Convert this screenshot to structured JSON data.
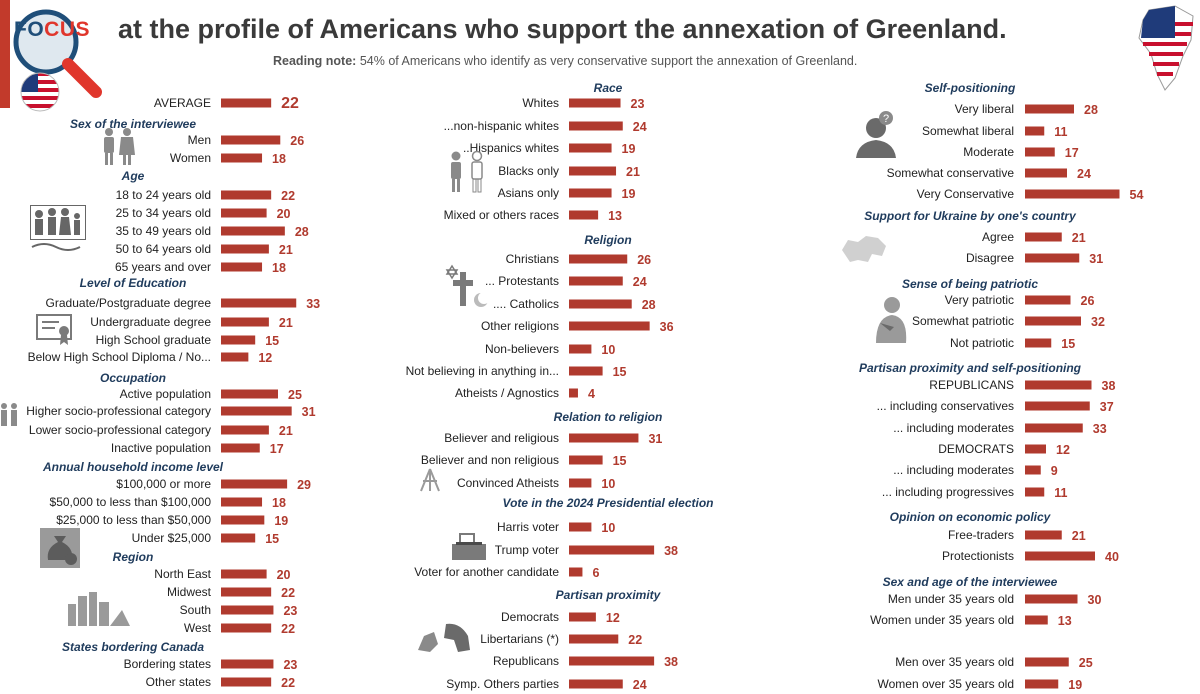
{
  "header": {
    "logo_word_a": "FO",
    "logo_word_b": "CUS",
    "title": "at the profile of Americans who support the annexation of Greenland.",
    "note_label": "Reading note:",
    "note_text": "54% of Americans who identify as very conservative support the annexation of Greenland."
  },
  "colors": {
    "bar": "#b03a2e",
    "value": "#b03a2e",
    "section": "#1f3b5c",
    "accent": "#e0362c"
  },
  "icons": [
    "flag-usa-icon",
    "greenland-flag-map-icon",
    "people-icon",
    "family-icon",
    "diploma-icon",
    "money-bag-icon",
    "city-icon",
    "religion-icon",
    "ballot-box-icon",
    "parties-icon",
    "thinking-person-icon",
    "ukraine-map-icon",
    "patriot-icon"
  ],
  "chart_data": [
    {
      "type": "bar",
      "orientation": "horizontal",
      "unit": "%",
      "groups": [
        {
          "title": "",
          "items": [
            {
              "label": "AVERAGE",
              "value": 22
            }
          ]
        },
        {
          "title": "Sex of the interviewee",
          "items": [
            {
              "label": "Men",
              "value": 26
            },
            {
              "label": "Women",
              "value": 18
            }
          ]
        },
        {
          "title": "Age",
          "items": [
            {
              "label": "18 to 24 years old",
              "value": 22
            },
            {
              "label": "25 to 34 years old",
              "value": 20
            },
            {
              "label": "35 to 49 years old",
              "value": 28
            },
            {
              "label": "50 to 64 years old",
              "value": 21
            },
            {
              "label": "65 years and over",
              "value": 18
            }
          ]
        },
        {
          "title": "Level of Education",
          "items": [
            {
              "label": "Graduate/Postgraduate degree",
              "value": 33
            },
            {
              "label": "Undergraduate degree",
              "value": 21
            },
            {
              "label": "High School graduate",
              "value": 15
            },
            {
              "label": "Below High School Diploma / No...",
              "value": 12
            }
          ]
        },
        {
          "title": "Occupation",
          "items": [
            {
              "label": "Active population",
              "value": 25
            },
            {
              "label": "Higher socio-professional category",
              "value": 31
            },
            {
              "label": "Lower socio-professional category",
              "value": 21
            },
            {
              "label": "Inactive population",
              "value": 17
            }
          ]
        },
        {
          "title": "Annual household income level",
          "items": [
            {
              "label": "$100,000 or more",
              "value": 29
            },
            {
              "label": "$50,000 to less than $100,000",
              "value": 18
            },
            {
              "label": "$25,000 to less than $50,000",
              "value": 19
            },
            {
              "label": "Under $25,000",
              "value": 15
            }
          ]
        },
        {
          "title": "Region",
          "items": [
            {
              "label": "North East",
              "value": 20
            },
            {
              "label": "Midwest",
              "value": 22
            },
            {
              "label": "South",
              "value": 23
            },
            {
              "label": "West",
              "value": 22
            }
          ]
        },
        {
          "title": "States bordering Canada",
          "items": [
            {
              "label": "Bordering states",
              "value": 23
            },
            {
              "label": "Other states",
              "value": 22
            }
          ]
        }
      ]
    },
    {
      "type": "bar",
      "orientation": "horizontal",
      "unit": "%",
      "groups": [
        {
          "title": "Race",
          "items": [
            {
              "label": "Whites",
              "value": 23
            },
            {
              "label": "...non-hispanic whites",
              "value": 24
            },
            {
              "label": "..Hispanics whites",
              "value": 19
            },
            {
              "label": "Blacks only",
              "value": 21
            },
            {
              "label": "Asians only",
              "value": 19
            },
            {
              "label": "Mixed or others races",
              "value": 13
            }
          ]
        },
        {
          "title": "Religion",
          "items": [
            {
              "label": "Christians",
              "value": 26
            },
            {
              "label": "... Protestants",
              "value": 24
            },
            {
              "label": ".... Catholics",
              "value": 28
            },
            {
              "label": "Other religions",
              "value": 36
            },
            {
              "label": "Non-believers",
              "value": 10
            },
            {
              "label": "Not believing in anything in...",
              "value": 15
            },
            {
              "label": "Atheists / Agnostics",
              "value": 4
            }
          ]
        },
        {
          "title": "Relation to religion",
          "items": [
            {
              "label": "Believer and religious",
              "value": 31
            },
            {
              "label": "Believer and non religious",
              "value": 15
            },
            {
              "label": "Convinced Atheists",
              "value": 10
            }
          ]
        },
        {
          "title": "Vote in the 2024 Presidential election",
          "items": [
            {
              "label": "Harris voter",
              "value": 10
            },
            {
              "label": "Trump voter",
              "value": 38
            },
            {
              "label": "Voter for another candidate",
              "value": 6
            }
          ]
        },
        {
          "title": "Partisan proximity",
          "items": [
            {
              "label": "Democrats",
              "value": 12
            },
            {
              "label": "Libertarians (*)",
              "value": 22
            },
            {
              "label": "Republicans",
              "value": 38
            },
            {
              "label": "Symp. Others parties",
              "value": 24
            }
          ]
        }
      ]
    },
    {
      "type": "bar",
      "orientation": "horizontal",
      "unit": "%",
      "groups": [
        {
          "title": "Self-positioning",
          "items": [
            {
              "label": "Very liberal",
              "value": 28
            },
            {
              "label": "Somewhat liberal",
              "value": 11
            },
            {
              "label": "Moderate",
              "value": 17
            },
            {
              "label": "Somewhat conservative",
              "value": 24
            },
            {
              "label": "Very Conservative",
              "value": 54
            }
          ]
        },
        {
          "title": "Support for Ukraine by one's country",
          "items": [
            {
              "label": "Agree",
              "value": 21
            },
            {
              "label": "Disagree",
              "value": 31
            }
          ]
        },
        {
          "title": "Sense of being patriotic",
          "items": [
            {
              "label": "Very patriotic",
              "value": 26
            },
            {
              "label": "Somewhat patriotic",
              "value": 32
            },
            {
              "label": "Not patriotic",
              "value": 15
            }
          ]
        },
        {
          "title": "Partisan proximity and self-positioning",
          "items": [
            {
              "label": "REPUBLICANS",
              "value": 38
            },
            {
              "label": "... including conservatives",
              "value": 37
            },
            {
              "label": "... including moderates",
              "value": 33
            },
            {
              "label": "DEMOCRATS",
              "value": 12
            },
            {
              "label": "... including moderates",
              "value": 9
            },
            {
              "label": "... including progressives",
              "value": 11
            }
          ]
        },
        {
          "title": "Opinion on economic policy",
          "items": [
            {
              "label": "Free-traders",
              "value": 21
            },
            {
              "label": "Protectionists",
              "value": 40
            }
          ]
        },
        {
          "title": "Sex and age of the interviewee",
          "items": [
            {
              "label": "Men under 35 years old",
              "value": 30
            },
            {
              "label": "Women under 35 years old",
              "value": 13
            },
            {
              "label": "Men over 35 years old",
              "value": 25
            },
            {
              "label": "Women over 35 years old",
              "value": 19
            }
          ]
        }
      ]
    }
  ]
}
